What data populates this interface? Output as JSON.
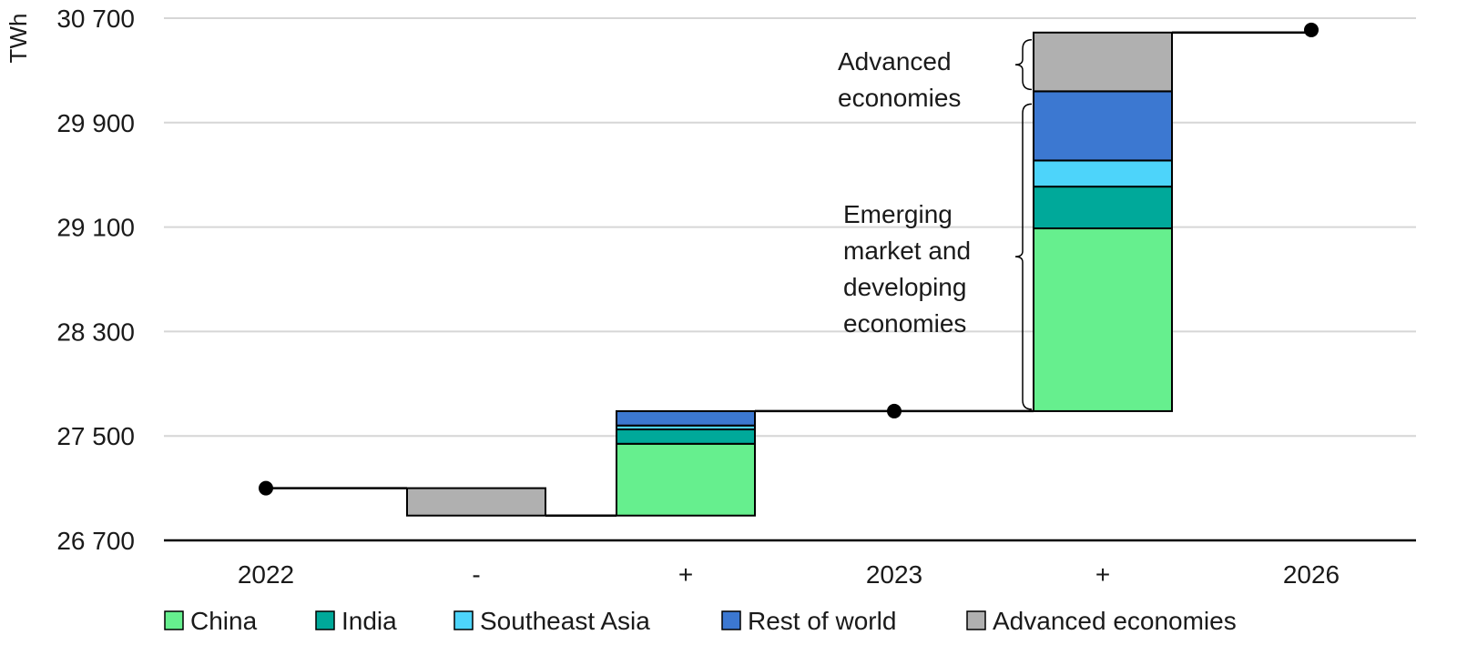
{
  "chart_data": {
    "type": "bar",
    "subtype": "waterfall-stacked",
    "ylabel": "TWh",
    "ylim": [
      26700,
      30700
    ],
    "yticks": [
      "26 700",
      "27 500",
      "28 300",
      "29 100",
      "29 900",
      "30 700"
    ],
    "ytick_values": [
      26700,
      27500,
      28300,
      29100,
      29900,
      30700
    ],
    "grid": true,
    "legend_position": "bottom",
    "categories": [
      "2022",
      "-",
      "+",
      "2023",
      "+",
      "2026"
    ],
    "totals": [
      {
        "category": "2022",
        "value": 27100
      },
      {
        "category": "2023",
        "value": 27690
      },
      {
        "category": "2026",
        "value": 30610
      }
    ],
    "series": [
      {
        "name": "China",
        "color": "#66ef8e",
        "values": [
          null,
          0,
          550,
          null,
          1400,
          null
        ]
      },
      {
        "name": "India",
        "color": "#00a99a",
        "values": [
          null,
          0,
          110,
          null,
          320,
          null
        ]
      },
      {
        "name": "Southeast Asia",
        "color": "#4dd4fa",
        "values": [
          null,
          0,
          30,
          null,
          200,
          null
        ]
      },
      {
        "name": "Rest of world",
        "color": "#3c78d1",
        "values": [
          null,
          0,
          110,
          null,
          530,
          null
        ]
      },
      {
        "name": "Advanced economies",
        "color": "#b0b0b0",
        "values": [
          null,
          -210,
          0,
          null,
          450,
          null
        ]
      }
    ],
    "annotations": [
      {
        "lines": [
          "Advanced",
          "economies"
        ]
      },
      {
        "lines": [
          "Emerging",
          "market and",
          "developing",
          "economies"
        ]
      }
    ]
  }
}
